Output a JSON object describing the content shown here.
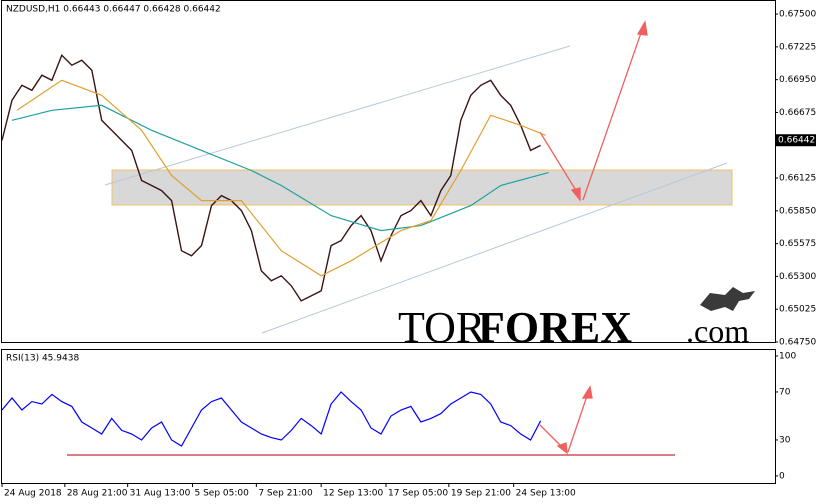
{
  "chart_data": [
    {
      "type": "line",
      "title": "NZDUSD,H1 0.66443 0.66447 0.66428 0.66442",
      "current_price": {
        "value": 0.66442,
        "label": "0.66442"
      },
      "watermark": [
        "TOR",
        "FOREX",
        ".com"
      ],
      "x": [
        0,
        10,
        20,
        30,
        40,
        50,
        60,
        70,
        80,
        90,
        100,
        110,
        120,
        130,
        140,
        150,
        160,
        170,
        180,
        190,
        200,
        210,
        220,
        230,
        240,
        250,
        260,
        270,
        280,
        290,
        300,
        310,
        320,
        330,
        340,
        350,
        360,
        370,
        380,
        390,
        400,
        410,
        420,
        430,
        440,
        450,
        460,
        470,
        480,
        490,
        500,
        510,
        520,
        530,
        540
      ],
      "xlim": [
        0,
        775
      ],
      "ylim": [
        0.6475,
        0.67618
      ],
      "yticks": [
        {
          "value": 0.675,
          "label": "0.67500"
        },
        {
          "value": 0.67225,
          "label": "0.67225"
        },
        {
          "value": 0.6695,
          "label": "0.66950"
        },
        {
          "value": 0.66675,
          "label": "0.66675"
        },
        {
          "value": 0.66125,
          "label": "0.66125"
        },
        {
          "value": 0.6585,
          "label": "0.65850"
        },
        {
          "value": 0.65575,
          "label": "0.65575"
        },
        {
          "value": 0.653,
          "label": "0.65300"
        },
        {
          "value": 0.65025,
          "label": "0.65025"
        },
        {
          "value": 0.6475,
          "label": "0.64750"
        }
      ],
      "series": [
        {
          "color": "#3a1414",
          "values": [
            0.66441,
            0.66777,
            0.66903,
            0.66861,
            0.66987,
            0.66945,
            0.67155,
            0.67071,
            0.67113,
            0.67029,
            0.66609,
            0.66525,
            0.66441,
            0.66357,
            0.66104,
            0.66062,
            0.6602,
            0.65936,
            0.65516,
            0.65473,
            0.65558,
            0.65894,
            0.65978,
            0.65936,
            0.65852,
            0.65684,
            0.65347,
            0.65263,
            0.65305,
            0.65221,
            0.65095,
            0.65137,
            0.65179,
            0.65558,
            0.656,
            0.65726,
            0.6581,
            0.65684,
            0.65431,
            0.65642,
            0.6581,
            0.65852,
            0.65936,
            0.6581,
            0.6602,
            0.66146,
            0.66609,
            0.66819,
            0.66903,
            0.66945,
            0.66819,
            0.66735,
            0.66567,
            0.66357,
            0.66399
          ]
        },
        {
          "color": "#20a0a0",
          "x": [
            10,
            50,
            100,
            150,
            200,
            250,
            280,
            330,
            380,
            420,
            470,
            500,
            548
          ],
          "values": [
            0.66609,
            0.66693,
            0.66735,
            0.66525,
            0.66357,
            0.66188,
            0.66062,
            0.6581,
            0.65684,
            0.65726,
            0.65894,
            0.66062,
            0.66171
          ]
        },
        {
          "color": "#e0a030",
          "x": [
            15,
            60,
            100,
            140,
            170,
            200,
            240,
            280,
            320,
            350,
            400,
            430,
            460,
            490,
            520,
            545
          ],
          "values": [
            0.66693,
            0.66945,
            0.66819,
            0.66525,
            0.66146,
            0.65936,
            0.65936,
            0.65516,
            0.65305,
            0.65431,
            0.65684,
            0.65768,
            0.66188,
            0.66651,
            0.66567,
            0.66483
          ]
        }
      ]
    },
    {
      "type": "line",
      "title": "RSI(13) 45.9438",
      "x": [
        0,
        10,
        20,
        30,
        40,
        50,
        60,
        70,
        80,
        90,
        100,
        110,
        120,
        130,
        140,
        150,
        160,
        170,
        180,
        190,
        200,
        210,
        220,
        230,
        240,
        250,
        260,
        270,
        280,
        290,
        300,
        310,
        320,
        330,
        340,
        350,
        360,
        370,
        380,
        390,
        400,
        410,
        420,
        430,
        440,
        450,
        460,
        470,
        480,
        490,
        500,
        510,
        520,
        530,
        540
      ],
      "xlim": [
        0,
        775
      ],
      "xticks": [
        {
          "value": 0,
          "label": "24 Aug 2018"
        },
        {
          "value": 63,
          "label": "28 Aug 21:00"
        },
        {
          "value": 126,
          "label": "31 Aug 13:00"
        },
        {
          "value": 191,
          "label": "5 Sep 05:00"
        },
        {
          "value": 255,
          "label": "7 Sep 21:00"
        },
        {
          "value": 320,
          "label": "12 Sep 13:00"
        },
        {
          "value": 385,
          "label": "17 Sep 05:00"
        },
        {
          "value": 448,
          "label": "19 Sep 21:00"
        },
        {
          "value": 513,
          "label": "24 Sep 13:00"
        }
      ],
      "ylim": [
        -6.7,
        105.8
      ],
      "yticks": [
        0,
        30,
        70,
        100
      ],
      "series": [
        {
          "color": "#0000ff",
          "values": [
            55,
            65,
            55,
            62,
            60,
            68,
            62,
            58,
            45,
            40,
            35,
            48,
            38,
            35,
            30,
            40,
            45,
            30,
            25,
            40,
            55,
            62,
            65,
            55,
            45,
            40,
            35,
            32,
            30,
            38,
            48,
            42,
            35,
            60,
            70,
            62,
            55,
            40,
            35,
            50,
            55,
            58,
            45,
            48,
            52,
            60,
            65,
            70,
            68,
            60,
            45,
            42,
            35,
            30,
            46
          ]
        }
      ]
    }
  ]
}
